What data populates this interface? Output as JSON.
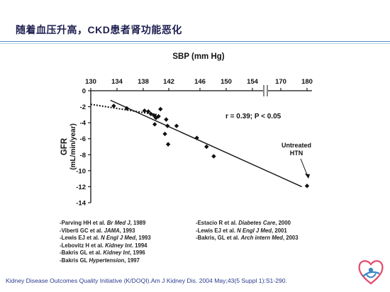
{
  "slide_title": "随着血压升高，CKD患者肾功能恶化",
  "citation": "Kidney Disease Outcomes Quality Initiative (K/DOQI).Am J Kidney Dis. 2004 May;43(5 Suppl 1):S1-290.",
  "references": {
    "left": [
      {
        "pre": "-Parving HH et al. ",
        "journal": "Br Med J",
        "post": ", 1989"
      },
      {
        "pre": "-Viberti GC et al. ",
        "journal": "JAMA",
        "post": ", 1993"
      },
      {
        "pre": "-Lewis EJ et al. ",
        "journal": "N Engl J Med",
        "post": ", 1993"
      },
      {
        "pre": "-Lebovitz H et al. ",
        "journal": "Kidney Int",
        "post": ". 1994"
      },
      {
        "pre": "-Bakris GL et al. ",
        "journal": "Kidney Int",
        "post": ", 1996"
      },
      {
        "pre": "-Bakris GL ",
        "journal": "Hypertension",
        "post": ", 1997"
      }
    ],
    "right": [
      {
        "pre": "-Estacio R et al. ",
        "journal": "Diabetes Care",
        "post": ", 2000"
      },
      {
        "pre": "-Lewis EJ et al. ",
        "journal": "N Engl J Med",
        "post": ", 2001"
      },
      {
        "pre": "-Bakris, GL et al. ",
        "journal": "Arch intern Med",
        "post": ", 2003"
      }
    ]
  },
  "chart_data": {
    "type": "scatter",
    "xlabel": "SBP (mm Hg)",
    "ylabel": "GFR",
    "ylabel_units": "(mL/min/year)",
    "x_ticks": [
      "130",
      "134",
      "138",
      "142",
      "146",
      "150",
      "154",
      "170",
      "180"
    ],
    "x_axis_break_between": [
      "154",
      "170"
    ],
    "y_ticks": [
      0,
      -2,
      -4,
      -6,
      -8,
      -10,
      -12,
      -14
    ],
    "ylim": [
      -14,
      0
    ],
    "x_axis_position": "top",
    "annotation_stats": "r = 0.39; P < 0.05",
    "annotation_outlier": [
      "Untreated",
      "HTN"
    ],
    "points": [
      {
        "x": 133.5,
        "y": -1.9
      },
      {
        "x": 135.5,
        "y": -2.2
      },
      {
        "x": 138.2,
        "y": -2.5
      },
      {
        "x": 138.8,
        "y": -2.6
      },
      {
        "x": 139.2,
        "y": -2.9
      },
      {
        "x": 139.7,
        "y": -3.1
      },
      {
        "x": 140.0,
        "y": -3.4
      },
      {
        "x": 140.4,
        "y": -3.2
      },
      {
        "x": 139.8,
        "y": -4.2
      },
      {
        "x": 140.7,
        "y": -2.3
      },
      {
        "x": 141.6,
        "y": -3.6
      },
      {
        "x": 141.8,
        "y": -4.4
      },
      {
        "x": 141.4,
        "y": -5.4
      },
      {
        "x": 143.0,
        "y": -4.4
      },
      {
        "x": 141.9,
        "y": -6.7
      },
      {
        "x": 145.6,
        "y": -5.9
      },
      {
        "x": 147.0,
        "y": -7.0
      },
      {
        "x": 148.1,
        "y": -8.2
      },
      {
        "x": 180.0,
        "y": -11.9
      }
    ],
    "outlier_index": 18,
    "regression": {
      "x": [
        133,
        178
      ],
      "y": [
        -1.2,
        -12.0
      ]
    },
    "trend_dotted": {
      "x": [
        130,
        140.2
      ],
      "y": [
        -1.7,
        -3.0
      ]
    }
  }
}
